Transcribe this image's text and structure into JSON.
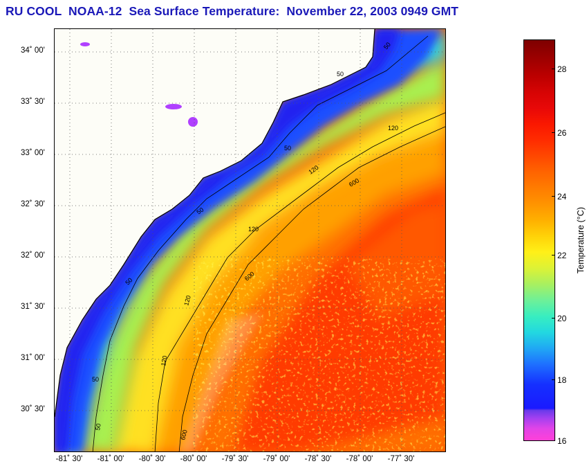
{
  "title": "RU COOL  NOAA-12  Sea Surface Temperature:  November 22, 2003 0949 GMT",
  "map": {
    "y_ticks": [
      "34˚ 00'",
      "33˚ 30'",
      "33˚ 00'",
      "32˚ 30'",
      "32˚ 00'",
      "31˚ 30'",
      "31˚ 00'",
      "30˚ 30'"
    ],
    "x_ticks": [
      "-81˚ 30'",
      "-81˚ 00'",
      "-80˚ 30'",
      "-80˚ 00'",
      "-79˚ 30'",
      "-79˚ 00'",
      "-78˚ 30'",
      "-78˚ 00'",
      "-77˚ 30'"
    ],
    "contour_labels": {
      "c50": "50",
      "c120": "120",
      "c600": "600"
    },
    "isobaths": [
      "50",
      "120",
      "600"
    ]
  },
  "colorbar": {
    "label": "Temperature (°C)",
    "ticks": [
      "28",
      "26",
      "24",
      "22",
      "20",
      "18",
      "16"
    ],
    "min": 16,
    "max": 29
  },
  "colors": {
    "title": "#1a18b8",
    "land": "#fdfdf7",
    "coast": "#000000"
  }
}
